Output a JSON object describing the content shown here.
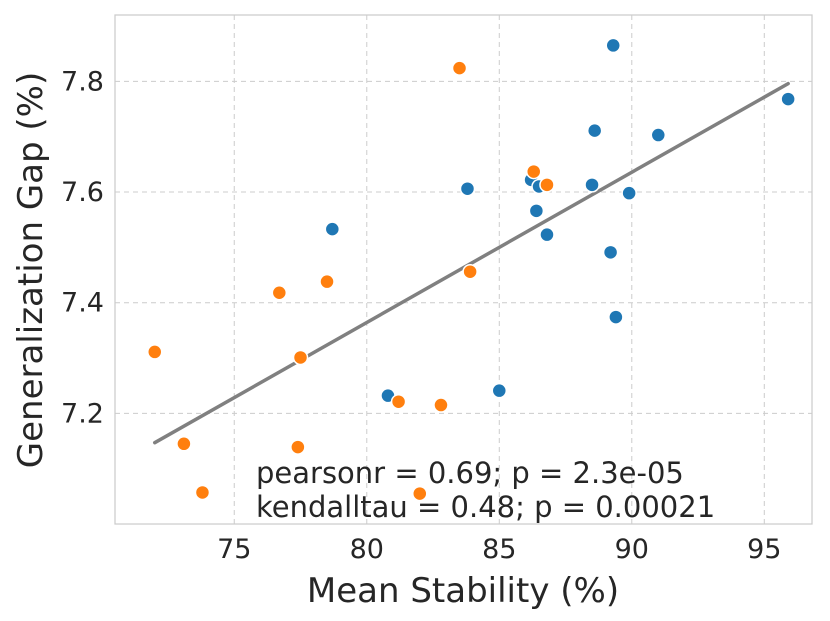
{
  "chart_data": {
    "type": "scatter",
    "title": "",
    "xlabel": "Mean Stability (%)",
    "ylabel": "Generalization Gap (%)",
    "xlim": [
      70.5,
      96.8
    ],
    "ylim": [
      7.0,
      7.92
    ],
    "xticks": [
      75,
      80,
      85,
      90,
      95
    ],
    "yticks": [
      7.2,
      7.4,
      7.6,
      7.8
    ],
    "grid": true,
    "colors": {
      "series_blue": "#1f77b4",
      "series_orange": "#ff7f0e",
      "fit": "#808080"
    },
    "series": [
      {
        "name": "blue",
        "color": "#1f77b4",
        "points": [
          [
            89.3,
            7.865
          ],
          [
            95.9,
            7.768
          ],
          [
            91.0,
            7.703
          ],
          [
            88.6,
            7.711
          ],
          [
            86.2,
            7.622
          ],
          [
            86.5,
            7.61
          ],
          [
            88.5,
            7.613
          ],
          [
            89.9,
            7.598
          ],
          [
            83.8,
            7.606
          ],
          [
            86.4,
            7.566
          ],
          [
            86.8,
            7.523
          ],
          [
            78.7,
            7.533
          ],
          [
            89.2,
            7.491
          ],
          [
            89.4,
            7.374
          ],
          [
            85.0,
            7.241
          ],
          [
            80.8,
            7.232
          ]
        ]
      },
      {
        "name": "orange",
        "color": "#ff7f0e",
        "points": [
          [
            83.5,
            7.824
          ],
          [
            86.3,
            7.637
          ],
          [
            86.8,
            7.613
          ],
          [
            83.9,
            7.456
          ],
          [
            78.5,
            7.438
          ],
          [
            76.7,
            7.418
          ],
          [
            72.0,
            7.311
          ],
          [
            77.5,
            7.301
          ],
          [
            81.2,
            7.221
          ],
          [
            82.8,
            7.215
          ],
          [
            73.1,
            7.145
          ],
          [
            77.4,
            7.139
          ],
          [
            73.8,
            7.057
          ],
          [
            82.0,
            7.055
          ]
        ]
      }
    ],
    "fit_line": {
      "x": [
        72.0,
        95.9
      ],
      "y": [
        7.147,
        7.796
      ]
    },
    "annotations": [
      "pearsonr = 0.69; p = 2.3e-05",
      "kendalltau = 0.48; p = 0.00021"
    ]
  }
}
